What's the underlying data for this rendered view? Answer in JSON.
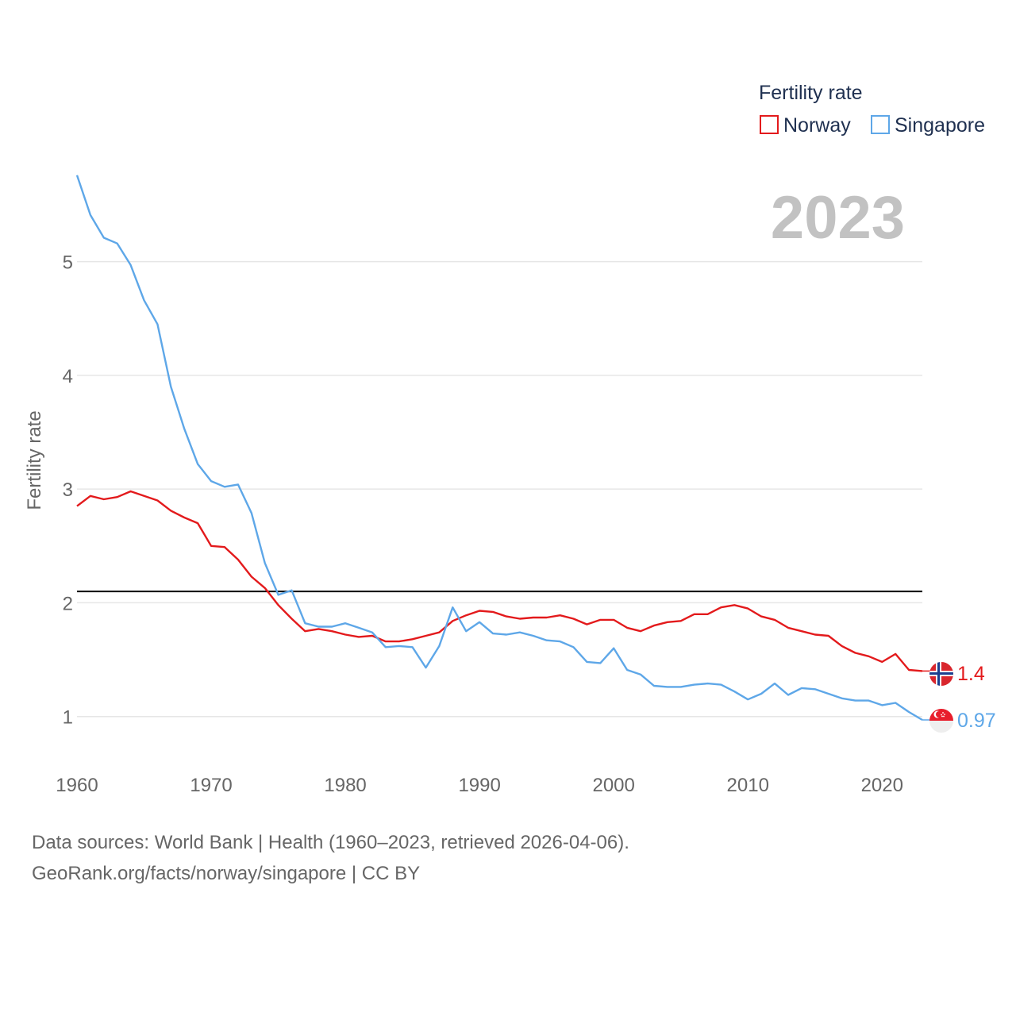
{
  "chart_data": {
    "type": "line",
    "year_label": "2023",
    "ylabel": "Fertility rate",
    "xlabel": "",
    "xlim": [
      1960,
      2023
    ],
    "ylim": [
      0.6,
      5.8
    ],
    "x_ticks": [
      1960,
      1970,
      1980,
      1990,
      2000,
      2010,
      2020
    ],
    "y_ticks": [
      1,
      2,
      3,
      4,
      5
    ],
    "reference_line": 2.1,
    "legend": {
      "title": "Fertility rate",
      "position": "top-right"
    },
    "x": [
      1960,
      1961,
      1962,
      1963,
      1964,
      1965,
      1966,
      1967,
      1968,
      1969,
      1970,
      1971,
      1972,
      1973,
      1974,
      1975,
      1976,
      1977,
      1978,
      1979,
      1980,
      1981,
      1982,
      1983,
      1984,
      1985,
      1986,
      1987,
      1988,
      1989,
      1990,
      1991,
      1992,
      1993,
      1994,
      1995,
      1996,
      1997,
      1998,
      1999,
      2000,
      2001,
      2002,
      2003,
      2004,
      2005,
      2006,
      2007,
      2008,
      2009,
      2010,
      2011,
      2012,
      2013,
      2014,
      2015,
      2016,
      2017,
      2018,
      2019,
      2020,
      2021,
      2022,
      2023
    ],
    "series": [
      {
        "name": "Norway",
        "color": "#e31a1c",
        "end_label": "1.4",
        "values": [
          2.85,
          2.94,
          2.91,
          2.93,
          2.98,
          2.94,
          2.9,
          2.81,
          2.75,
          2.7,
          2.5,
          2.49,
          2.38,
          2.23,
          2.13,
          1.98,
          1.86,
          1.75,
          1.77,
          1.75,
          1.72,
          1.7,
          1.71,
          1.66,
          1.66,
          1.68,
          1.71,
          1.74,
          1.84,
          1.89,
          1.93,
          1.92,
          1.88,
          1.86,
          1.87,
          1.87,
          1.89,
          1.86,
          1.81,
          1.85,
          1.85,
          1.78,
          1.75,
          1.8,
          1.83,
          1.84,
          1.9,
          1.9,
          1.96,
          1.98,
          1.95,
          1.88,
          1.85,
          1.78,
          1.75,
          1.72,
          1.71,
          1.62,
          1.56,
          1.53,
          1.48,
          1.55,
          1.41,
          1.4
        ]
      },
      {
        "name": "Singapore",
        "color": "#5ea7e8",
        "end_label": "0.97",
        "values": [
          5.76,
          5.41,
          5.21,
          5.16,
          4.97,
          4.66,
          4.45,
          3.9,
          3.53,
          3.22,
          3.07,
          3.02,
          3.04,
          2.79,
          2.35,
          2.07,
          2.11,
          1.82,
          1.79,
          1.79,
          1.82,
          1.78,
          1.74,
          1.61,
          1.62,
          1.61,
          1.43,
          1.62,
          1.96,
          1.75,
          1.83,
          1.73,
          1.72,
          1.74,
          1.71,
          1.67,
          1.66,
          1.61,
          1.48,
          1.47,
          1.6,
          1.41,
          1.37,
          1.27,
          1.26,
          1.26,
          1.28,
          1.29,
          1.28,
          1.22,
          1.15,
          1.2,
          1.29,
          1.19,
          1.25,
          1.24,
          1.2,
          1.16,
          1.14,
          1.14,
          1.1,
          1.12,
          1.04,
          0.97
        ]
      }
    ]
  },
  "source": {
    "line1": "Data sources: World Bank | Health (1960–2023, retrieved 2026-04-06).",
    "line2": "GeoRank.org/facts/norway/singapore | CC BY"
  }
}
